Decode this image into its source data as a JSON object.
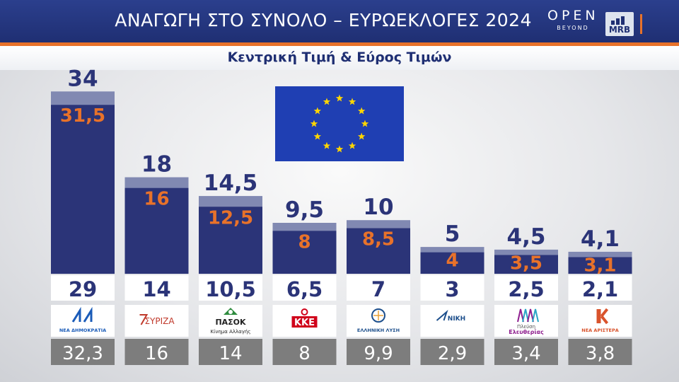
{
  "header": {
    "title": "ΑΝΑΓΩΓΗ ΣΤΟ ΣΥΝΟΛΟ – ΕΥΡΩΕΚΛΟΓΕΣ 2024",
    "logo_open": "OPEN",
    "logo_open_sub": "BEYOND",
    "logo_mrb": "MRB"
  },
  "colors": {
    "header_bg": "#1f2f73",
    "accent_orange": "#e8722a",
    "range_upper": "#8189b2",
    "range_lower": "#2b3478",
    "previous_box": "#7d7d7d"
  },
  "chart_data": {
    "type": "bar",
    "subtitle": "Κεντρική Τιμή & Εύρος Τιμών",
    "categories": [
      "ΝΕΑ ΔΗΜΟΚΡΑΤΙΑ",
      "ΣΥΡΙΖΑ",
      "ΠΑΣΟΚ",
      "ΚΚΕ",
      "ΕΛΛΗΝΙΚΗ ΛΥΣΗ",
      "ΝΙΚΗ",
      "Πλεύση Ελευθερίας",
      "ΝΕΑ ΑΡΙΣΤΕΡΑ"
    ],
    "series": [
      {
        "name": "",
        "values": [
          34,
          18,
          14.5,
          9.5,
          10,
          5,
          4.5,
          4.1
        ]
      },
      {
        "name": "",
        "values": [
          31.5,
          16,
          12.5,
          8,
          8.5,
          4,
          3.5,
          3.1
        ]
      },
      {
        "name": "",
        "values": [
          29,
          14,
          10.5,
          6.5,
          7,
          3,
          2.5,
          2.1
        ]
      },
      {
        "name": "",
        "values": [
          32.3,
          16,
          14,
          8,
          9.9,
          2.9,
          3.4,
          3.8
        ]
      }
    ],
    "labels": {
      "high": [
        "34",
        "18",
        "14,5",
        "9,5",
        "10",
        "5",
        "4,5",
        "4,1"
      ],
      "central": [
        "31,5",
        "16",
        "12,5",
        "8",
        "8,5",
        "4",
        "3,5",
        "3,1"
      ],
      "low": [
        "29",
        "14",
        "10,5",
        "6,5",
        "7",
        "3",
        "2,5",
        "2,1"
      ],
      "previous": [
        "32,3",
        "16",
        "14",
        "8",
        "9,9",
        "2,9",
        "3,4",
        "3,8"
      ]
    },
    "party_logos": [
      {
        "text": "ΝΕΑ ΔΗΜΟΚΡΑΤΙΑ",
        "icon": "nd-logo-icon",
        "color": "#1a5bb8"
      },
      {
        "text": "ΣΥΡΙΖΑ",
        "icon": "syriza-logo-icon",
        "color": "#c0392b"
      },
      {
        "text": "ΠΑΣΟΚ",
        "sub": "Κίνημα Αλλαγής",
        "icon": "pasok-logo-icon",
        "color": "#2e8b3e"
      },
      {
        "text": "ΚΚΕ",
        "icon": "kke-logo-icon",
        "color": "#d0021b"
      },
      {
        "text": "ΕΛΛΗΝΙΚΗ ΛΥΣΗ",
        "icon": "elliniki-lysi-logo-icon",
        "color": "#1d4f8c"
      },
      {
        "text": "ΝΙΚΗ",
        "icon": "niki-logo-icon",
        "color": "#1d4f8c"
      },
      {
        "text": "Πλεύση",
        "sub": "Ελευθερίας",
        "icon": "plefsi-logo-icon",
        "color": "#8e1e8f"
      },
      {
        "text": "ΝΕΑ ΑΡΙΣΤΕΡΑ",
        "icon": "nea-aristera-logo-icon",
        "color": "#d9532c"
      }
    ],
    "ylim": [
      0,
      34
    ]
  },
  "flag": {
    "icon": "eu-flag-icon",
    "bg": "#1f3fb3",
    "star": "#ffd500"
  }
}
